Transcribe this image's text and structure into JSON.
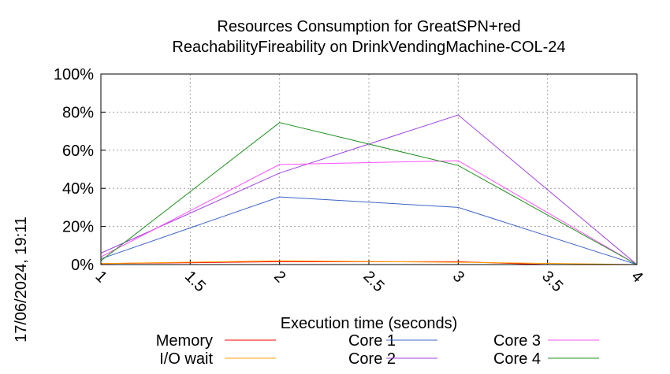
{
  "chart_data": {
    "type": "line",
    "title": "Resources Consumption for GreatSPN+red",
    "subtitle": "ReachabilityFireability on DrinkVendingMachine-COL-24",
    "xlabel": "Execution time (seconds)",
    "ylabel": "",
    "timestamp": "17/06/2024, 19:11",
    "xlim": [
      1,
      4
    ],
    "ylim": [
      0,
      100
    ],
    "x_ticks": [
      "1",
      "1.5",
      "2",
      "2.5",
      "3",
      "3.5",
      "4"
    ],
    "y_ticks": [
      "0%",
      "20%",
      "40%",
      "60%",
      "80%",
      "100%"
    ],
    "grid": true,
    "legend_position": "bottom",
    "series": [
      {
        "name": "Memory",
        "color": "#ff0000",
        "x": [
          1,
          2,
          3,
          3.5
        ],
        "values": [
          0.5,
          1.5,
          1.5,
          0
        ]
      },
      {
        "name": "I/O wait",
        "color": "#ffa000",
        "x": [
          1,
          2,
          3,
          4
        ],
        "values": [
          0.5,
          2,
          1.2,
          0
        ]
      },
      {
        "name": "Core 1",
        "color": "#3c64c8",
        "x": [
          1,
          2,
          3,
          4
        ],
        "values": [
          3,
          35.5,
          30,
          0
        ]
      },
      {
        "name": "Core 2",
        "color": "#a040e0",
        "x": [
          1,
          2,
          3,
          4
        ],
        "values": [
          6,
          48,
          78.5,
          0
        ]
      },
      {
        "name": "Core 3",
        "color": "#ff50ff",
        "x": [
          1,
          2,
          3,
          4
        ],
        "values": [
          4,
          52.5,
          54.5,
          0
        ]
      },
      {
        "name": "Core 4",
        "color": "#209020",
        "x": [
          1,
          2,
          3,
          4
        ],
        "values": [
          2,
          74.5,
          52,
          0
        ]
      }
    ]
  }
}
